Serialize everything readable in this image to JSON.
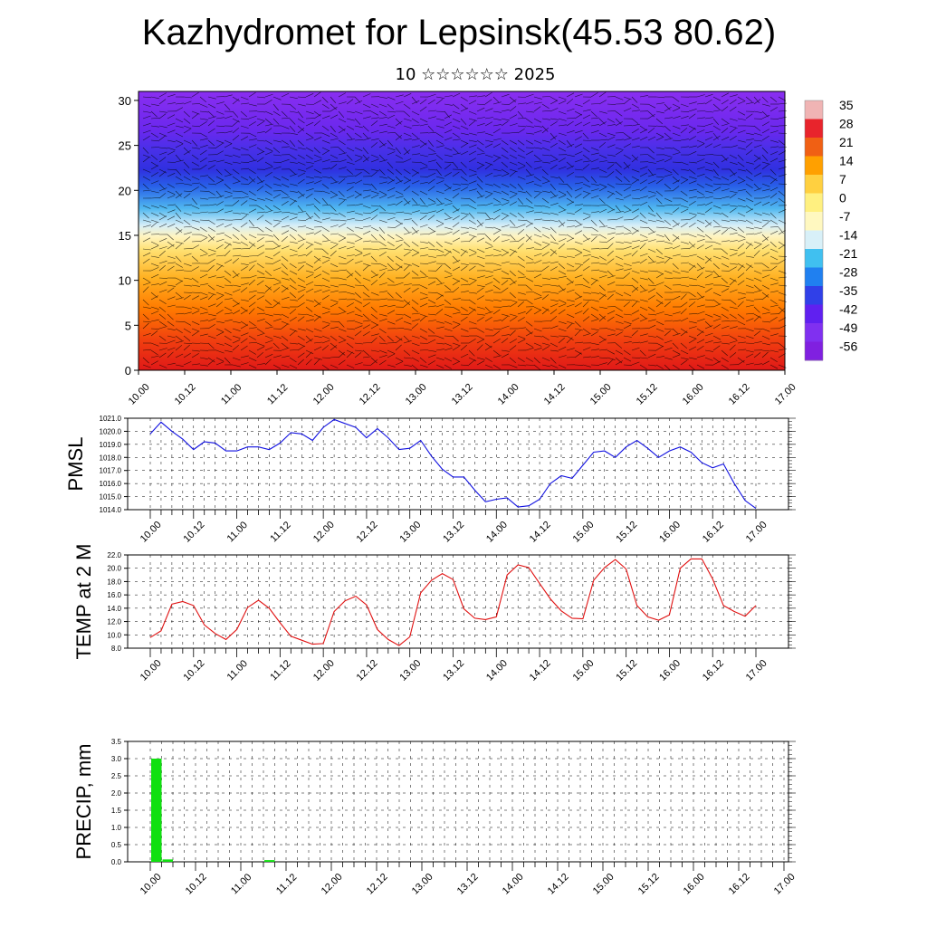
{
  "title": "Kazhydromet for Lepsinsk(45.53 80.62)",
  "subtitle": "10 ☆☆☆☆☆☆ 2025",
  "chart_data": [
    {
      "type": "heatmap",
      "description_note": "",
      "x_ticks": [
        "10.00",
        "10.12",
        "11.00",
        "11.12",
        "12.00",
        "12.12",
        "13.00",
        "13.12",
        "14.00",
        "14.12",
        "15.00",
        "15.12",
        "16.00",
        "16.12",
        "17.00"
      ],
      "y_ticks": [
        "0",
        "5",
        "10",
        "15",
        "20",
        "25",
        "30"
      ],
      "ylim": [
        0,
        31
      ],
      "colorbar_labels": [
        "35",
        "28",
        "21",
        "14",
        "7",
        "0",
        "-7",
        "-14",
        "-21",
        "-28",
        "-35",
        "-42",
        "-49",
        "-56"
      ],
      "colorbar_colors": [
        "#f0b4b4",
        "#e8242c",
        "#f06014",
        "#ffa000",
        "#ffd040",
        "#fff080",
        "#fff8c0",
        "#d8f0f8",
        "#40c0f0",
        "#2080f0",
        "#3040e8",
        "#6020f0",
        "#8030f0",
        "#8020e0"
      ]
    },
    {
      "type": "line",
      "ylabel": "PMSL",
      "ylim": [
        1014,
        1021
      ],
      "y_ticks": [
        "1014.0",
        "1015.0",
        "1016.0",
        "1017.0",
        "1018.0",
        "1019.0",
        "1020.0",
        "1021.0"
      ],
      "x_ticks": [
        "10.00",
        "10.12",
        "11.00",
        "11.12",
        "12.00",
        "12.12",
        "13.00",
        "13.12",
        "14.00",
        "14.12",
        "15.00",
        "15.12",
        "16.00",
        "16.12",
        "17.00"
      ],
      "color": "#1010e0",
      "values": [
        1019.8,
        1020.7,
        1020.0,
        1019.4,
        1018.6,
        1019.2,
        1019.1,
        1018.5,
        1018.5,
        1018.8,
        1018.8,
        1018.6,
        1019.1,
        1019.9,
        1019.8,
        1019.3,
        1020.3,
        1020.9,
        1020.6,
        1020.3,
        1019.5,
        1020.2,
        1019.5,
        1018.6,
        1018.7,
        1019.3,
        1018.1,
        1017.1,
        1016.5,
        1016.5,
        1015.5,
        1014.6,
        1014.8,
        1014.9,
        1014.2,
        1014.3,
        1014.8,
        1016.0,
        1016.6,
        1016.4,
        1017.4,
        1018.4,
        1018.5,
        1018.0,
        1018.8,
        1019.3,
        1018.7,
        1018.0,
        1018.5,
        1018.8,
        1018.4,
        1017.6,
        1017.2,
        1017.5,
        1016.0,
        1014.7,
        1014.1
      ]
    },
    {
      "type": "line",
      "ylabel": "TEMP at 2 M",
      "ylim": [
        8,
        22
      ],
      "y_ticks": [
        "8.0",
        "10.0",
        "12.0",
        "14.0",
        "16.0",
        "18.0",
        "20.0",
        "22.0"
      ],
      "x_ticks": [
        "10.00",
        "10.12",
        "11.00",
        "11.12",
        "12.00",
        "12.12",
        "13.00",
        "13.12",
        "14.00",
        "14.12",
        "15.00",
        "15.12",
        "16.00",
        "16.12",
        "17.00"
      ],
      "color": "#e01010",
      "values": [
        9.6,
        10.6,
        14.6,
        15.0,
        14.4,
        11.5,
        10.2,
        9.3,
        10.8,
        14.1,
        15.2,
        14.0,
        11.8,
        9.8,
        9.2,
        8.6,
        8.7,
        13.5,
        15.1,
        15.8,
        14.5,
        10.8,
        9.3,
        8.4,
        9.7,
        16.3,
        18.2,
        19.2,
        18.3,
        13.9,
        12.5,
        12.3,
        12.7,
        19.0,
        20.5,
        20.1,
        17.7,
        15.4,
        13.6,
        12.5,
        12.4,
        18.2,
        20.1,
        21.3,
        19.9,
        14.4,
        12.7,
        12.2,
        13.0,
        20.0,
        21.4,
        21.4,
        18.4,
        14.4,
        13.5,
        12.8,
        14.4
      ]
    },
    {
      "type": "bar",
      "ylabel": "PRECIP, mm",
      "ylim": [
        0,
        3.5
      ],
      "y_ticks": [
        "0.0",
        "0.5",
        "1.0",
        "1.5",
        "2.0",
        "2.5",
        "3.0",
        "3.5"
      ],
      "x_ticks": [
        "10.00",
        "10.12",
        "11.00",
        "11.12",
        "12.00",
        "12.12",
        "13.00",
        "13.12",
        "14.00",
        "14.12",
        "15.00",
        "15.12",
        "16.00",
        "16.12",
        "17.00"
      ],
      "color": "#10e010",
      "values": [
        3.0,
        0.07,
        0,
        0,
        0,
        0,
        0,
        0,
        0,
        0,
        0.05,
        0,
        0,
        0,
        0,
        0,
        0,
        0,
        0,
        0,
        0,
        0,
        0,
        0,
        0,
        0,
        0,
        0,
        0,
        0,
        0,
        0,
        0,
        0,
        0,
        0,
        0,
        0,
        0,
        0,
        0,
        0,
        0,
        0,
        0,
        0,
        0,
        0,
        0,
        0,
        0,
        0,
        0,
        0,
        0,
        0,
        0
      ]
    }
  ]
}
